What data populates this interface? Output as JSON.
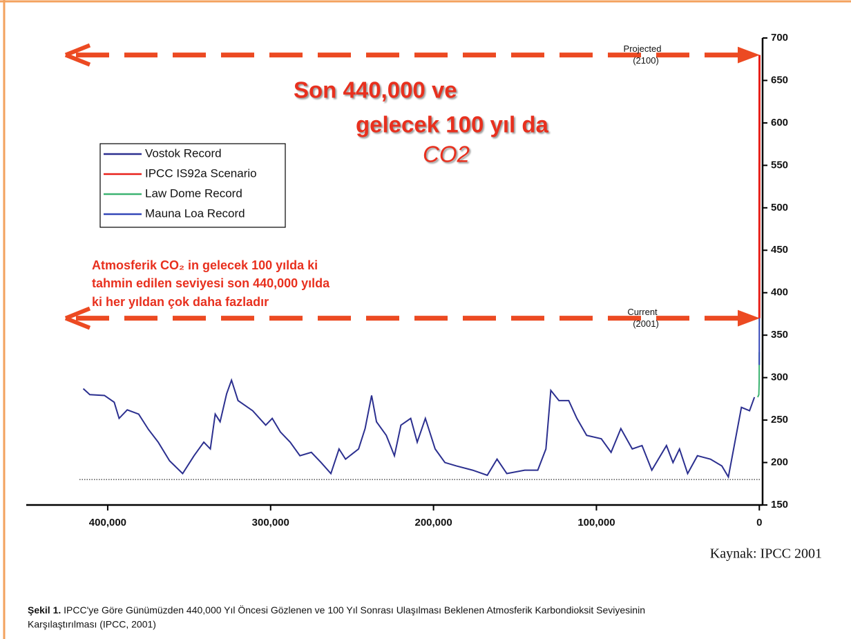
{
  "chart_data": {
    "type": "line",
    "headline": [
      "Son 440,000 ve",
      "gelecek 100 yıl da",
      "CO2"
    ],
    "note": [
      "Atmosferik CO₂ in gelecek 100 yılda ki",
      "tahmin edilen seviyesi son 440,000 yılda",
      "ki her yıldan çok daha fazladır"
    ],
    "source": "Kaynak: IPCC 2001",
    "annotations": [
      {
        "lines": [
          "Projected",
          "(2100)"
        ],
        "value": 680
      },
      {
        "lines": [
          "Current",
          "(2001)"
        ],
        "value": 370
      }
    ],
    "reference_line": 180,
    "xlim": [
      450000,
      -2000
    ],
    "ylim": [
      150,
      700
    ],
    "xticks": [
      {
        "value": 400000,
        "label": "400,000"
      },
      {
        "value": 300000,
        "label": "300,000"
      },
      {
        "value": 200000,
        "label": "200,000"
      },
      {
        "value": 100000,
        "label": "100,000"
      },
      0
    ],
    "yticks": [
      150,
      200,
      250,
      300,
      350,
      400,
      450,
      500,
      550,
      600,
      650,
      700
    ],
    "legend": "upper left",
    "series": [
      {
        "name": "Vostok Record",
        "color": "#2b2f8f",
        "x": [
          415000,
          411000,
          402000,
          396000,
          393000,
          388000,
          381000,
          375000,
          369000,
          362000,
          354000,
          347000,
          341000,
          337000,
          334000,
          331000,
          327000,
          324000,
          320000,
          311000,
          303000,
          299000,
          294000,
          288000,
          282000,
          275000,
          269000,
          263000,
          258000,
          254000,
          246000,
          242000,
          238000,
          235000,
          229000,
          224000,
          220000,
          214000,
          210000,
          205000,
          199000,
          193000,
          186000,
          176000,
          167000,
          161000,
          155000,
          144000,
          136000,
          131000,
          128000,
          123000,
          117000,
          112000,
          106000,
          97000,
          91000,
          85000,
          78000,
          72000,
          66000,
          57000,
          53000,
          49000,
          44000,
          38000,
          30000,
          23000,
          19000,
          15000,
          11000,
          6000,
          3000
        ],
        "values": [
          287,
          280,
          279,
          271,
          252,
          262,
          257,
          239,
          224,
          202,
          187,
          208,
          224,
          216,
          257,
          248,
          281,
          297,
          273,
          261,
          244,
          252,
          236,
          224,
          208,
          212,
          200,
          187,
          216,
          204,
          216,
          240,
          279,
          248,
          232,
          208,
          244,
          252,
          224,
          252,
          216,
          200,
          196,
          191,
          185,
          204,
          187,
          191,
          191,
          216,
          285,
          273,
          273,
          252,
          232,
          228,
          212,
          240,
          216,
          220,
          191,
          220,
          200,
          216,
          187,
          208,
          204,
          196,
          183,
          224,
          265,
          261,
          277
        ]
      },
      {
        "name": "IPCC IS92a Scenario",
        "color": "#e8201a",
        "x": [
          0,
          -100
        ],
        "values": [
          370,
          680
        ]
      },
      {
        "name": "Law Dome Record",
        "color": "#3cb371",
        "x": [
          1000,
          300,
          100,
          50
        ],
        "values": [
          277,
          280,
          295,
          330
        ]
      },
      {
        "name": "Mauna Loa Record",
        "color": "#3346b8",
        "x": [
          43,
          0
        ],
        "values": [
          315,
          370
        ]
      }
    ]
  },
  "caption": {
    "label": "Şekil 1.",
    "lines": [
      " IPCC'ye Göre Günümüzden 440,000 Yıl Öncesi Gözlenen ve 100 Yıl Sonrası Ulaşılması Beklenen Atmosferik Karbondioksit Seviyesinin",
      "Karşılaştırılması (IPCC, 2001)"
    ]
  }
}
